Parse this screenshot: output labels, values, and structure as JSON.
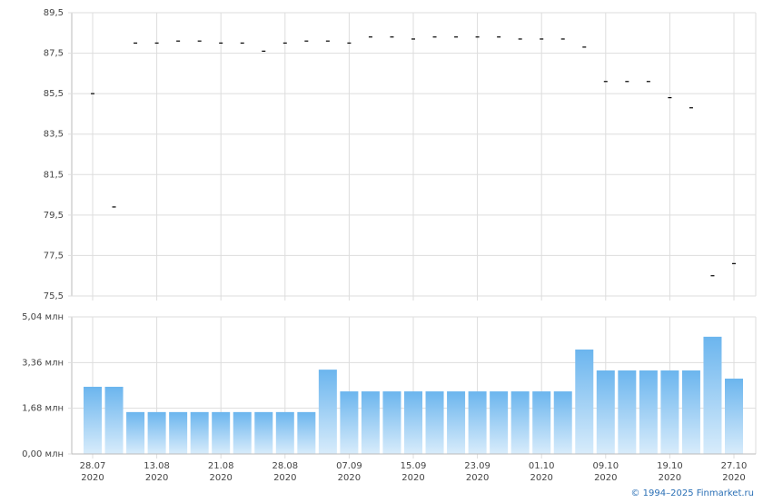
{
  "chart_data": [
    {
      "type": "dash",
      "categories": [
        "28.07",
        null,
        null,
        "13.08",
        null,
        null,
        "21.08",
        null,
        null,
        "28.08",
        null,
        null,
        "07.09",
        null,
        null,
        "15.09",
        null,
        null,
        "23.09",
        null,
        null,
        "01.10",
        null,
        null,
        "09.10",
        null,
        null,
        "19.10",
        null,
        null,
        "27.10"
      ],
      "category_years": [
        "2020",
        null,
        null,
        "2020",
        null,
        null,
        "2020",
        null,
        null,
        "2020",
        null,
        null,
        "2020",
        null,
        null,
        "2020",
        null,
        null,
        "2020",
        null,
        null,
        "2020",
        null,
        null,
        "2020",
        null,
        null,
        "2020",
        null,
        null,
        "2020"
      ],
      "values": [
        85.5,
        79.9,
        88.0,
        88.0,
        88.1,
        88.1,
        88.0,
        88.0,
        87.6,
        88.0,
        88.1,
        88.1,
        88.0,
        88.3,
        88.3,
        88.2,
        88.3,
        88.3,
        88.3,
        88.3,
        88.2,
        88.2,
        88.2,
        87.8,
        86.1,
        86.1,
        86.1,
        85.3,
        84.8,
        76.5,
        77.1
      ],
      "color": "#000000",
      "ylim": [
        75.5,
        89.5
      ],
      "yticks": [
        {
          "value": 75.5,
          "label": "75,5"
        },
        {
          "value": 77.5,
          "label": "77,5"
        },
        {
          "value": 79.5,
          "label": "79,5"
        },
        {
          "value": 81.5,
          "label": "81,5"
        },
        {
          "value": 83.5,
          "label": "83,5"
        },
        {
          "value": 85.5,
          "label": "85,5"
        },
        {
          "value": 87.5,
          "label": "87,5"
        },
        {
          "value": 89.5,
          "label": "89,5"
        }
      ],
      "grid": true
    },
    {
      "type": "bar",
      "values": [
        2.47,
        2.47,
        1.54,
        1.54,
        1.54,
        1.54,
        1.54,
        1.54,
        1.54,
        1.54,
        1.54,
        3.1,
        2.3,
        2.3,
        2.3,
        2.3,
        2.3,
        2.3,
        2.3,
        2.3,
        2.3,
        2.3,
        2.3,
        3.84,
        3.07,
        3.07,
        3.07,
        3.07,
        3.07,
        4.31,
        2.77
      ],
      "color": "#6bb5ee",
      "ylim": [
        0,
        5.04
      ],
      "yticks": [
        {
          "value": 0,
          "label": "0,00 млн"
        },
        {
          "value": 1.68,
          "label": "1,68 млн"
        },
        {
          "value": 3.36,
          "label": "3,36 млн"
        },
        {
          "value": 5.04,
          "label": "5,04 млн"
        }
      ],
      "grid": true
    }
  ],
  "footer": "© 1994–2025 Finmarket.ru"
}
